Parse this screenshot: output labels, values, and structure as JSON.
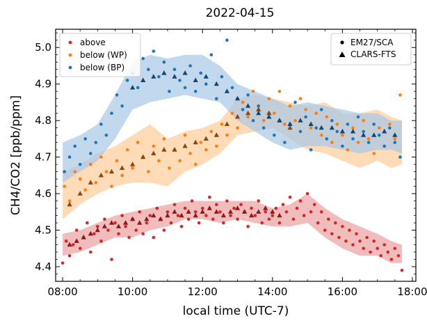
{
  "chart_data": {
    "type": "scatter",
    "title": "2022-04-15",
    "xlabel": "local time (UTC-7)",
    "ylabel": "CH4/CO2 [ppb/ppm]",
    "xlim": [
      7.8,
      18.1
    ],
    "ylim": [
      4.36,
      5.05
    ],
    "x_ticks": [
      {
        "value": 8,
        "label": "08:00"
      },
      {
        "value": 10,
        "label": "10:00"
      },
      {
        "value": 12,
        "label": "12:00"
      },
      {
        "value": 14,
        "label": "14:00"
      },
      {
        "value": 16,
        "label": "16:00"
      },
      {
        "value": 18,
        "label": "18:00"
      }
    ],
    "y_ticks": [
      {
        "value": 4.4,
        "label": "4.4"
      },
      {
        "value": 4.5,
        "label": "4.5"
      },
      {
        "value": 4.6,
        "label": "4.6"
      },
      {
        "value": 4.7,
        "label": "4.7"
      },
      {
        "value": 4.8,
        "label": "4.8"
      },
      {
        "value": 4.9,
        "label": "4.9"
      },
      {
        "value": 5.0,
        "label": "5.0"
      }
    ],
    "legend_series": [
      {
        "label": "above",
        "color": "#d62728"
      },
      {
        "label": "below (WP)",
        "color": "#ff7f0e"
      },
      {
        "label": "below (BP)",
        "color": "#1f77b4"
      }
    ],
    "legend_instruments": [
      {
        "label": "EM27/SCA",
        "marker": "circle"
      },
      {
        "label": "CLARS-FTS",
        "marker": "triangle"
      }
    ],
    "series": [
      {
        "key": "above",
        "color": "#d62728",
        "marker_dark": "#8b1a1a",
        "band_color": "#e9a0a0",
        "band": {
          "x": [
            8.0,
            8.5,
            9.0,
            9.5,
            10.0,
            10.5,
            11.0,
            11.5,
            12.0,
            12.5,
            13.0,
            13.5,
            14.0,
            14.5,
            15.0,
            15.5,
            16.0,
            16.5,
            17.0,
            17.4,
            17.7
          ],
          "lo": [
            4.43,
            4.44,
            4.46,
            4.48,
            4.48,
            4.5,
            4.51,
            4.53,
            4.53,
            4.52,
            4.53,
            4.52,
            4.51,
            4.51,
            4.52,
            4.48,
            4.45,
            4.43,
            4.43,
            4.41,
            4.41
          ],
          "hi": [
            4.49,
            4.5,
            4.52,
            4.54,
            4.55,
            4.56,
            4.57,
            4.58,
            4.58,
            4.58,
            4.58,
            4.58,
            4.56,
            4.57,
            4.6,
            4.56,
            4.53,
            4.51,
            4.49,
            4.47,
            4.46
          ]
        },
        "em27": {
          "x": [
            8.0,
            8.1,
            8.2,
            8.3,
            8.4,
            8.5,
            8.6,
            8.7,
            8.8,
            8.9,
            9.0,
            9.1,
            9.2,
            9.3,
            9.4,
            9.5,
            9.6,
            9.7,
            9.8,
            9.9,
            10.0,
            10.1,
            10.2,
            10.3,
            10.4,
            10.5,
            10.6,
            10.7,
            10.8,
            10.9,
            11.0,
            11.1,
            11.2,
            11.3,
            11.4,
            11.5,
            11.6,
            11.7,
            11.8,
            11.9,
            12.0,
            12.1,
            12.2,
            12.3,
            12.4,
            12.5,
            12.6,
            12.7,
            12.8,
            12.9,
            13.0,
            13.1,
            13.2,
            13.3,
            13.4,
            13.5,
            13.6,
            13.7,
            13.8,
            13.9,
            14.0,
            14.1,
            14.2,
            14.3,
            14.4,
            14.5,
            14.6,
            14.7,
            14.8,
            14.9,
            15.0,
            15.1,
            15.2,
            15.3,
            15.4,
            15.5,
            15.6,
            15.7,
            15.8,
            15.9,
            16.0,
            16.1,
            16.2,
            16.3,
            16.4,
            16.5,
            16.6,
            16.7,
            16.8,
            16.9,
            17.0,
            17.1,
            17.2,
            17.3,
            17.4,
            17.5,
            17.6,
            17.7
          ],
          "y": [
            4.41,
            4.47,
            4.43,
            4.46,
            4.5,
            4.45,
            4.48,
            4.52,
            4.44,
            4.49,
            4.51,
            4.47,
            4.53,
            4.5,
            4.42,
            4.52,
            4.49,
            4.54,
            4.51,
            4.48,
            4.53,
            4.5,
            4.55,
            4.49,
            4.52,
            4.54,
            4.48,
            4.56,
            4.53,
            4.5,
            4.55,
            4.52,
            4.57,
            4.54,
            4.51,
            4.56,
            4.53,
            4.58,
            4.55,
            4.52,
            4.56,
            4.54,
            4.59,
            4.53,
            4.57,
            4.55,
            4.52,
            4.58,
            4.54,
            4.56,
            4.53,
            4.57,
            4.55,
            4.51,
            4.56,
            4.54,
            4.58,
            4.52,
            4.55,
            4.53,
            4.54,
            4.56,
            4.52,
            4.57,
            4.55,
            4.59,
            4.53,
            4.56,
            4.58,
            4.54,
            4.6,
            4.55,
            4.57,
            4.52,
            4.55,
            4.5,
            4.53,
            4.49,
            4.52,
            4.48,
            4.51,
            4.47,
            4.5,
            4.46,
            4.49,
            4.47,
            4.45,
            4.48,
            4.44,
            4.47,
            4.45,
            4.43,
            4.46,
            4.44,
            4.42,
            4.45,
            4.43,
            4.39
          ]
        },
        "clars": {
          "x": [
            8.2,
            8.4,
            8.6,
            8.8,
            9.0,
            9.2,
            9.4,
            9.6,
            9.8,
            10.0,
            10.2,
            10.4,
            10.6,
            10.8,
            11.0,
            11.2,
            11.4,
            11.6,
            11.8,
            12.0,
            12.2,
            12.4,
            12.6,
            12.8,
            13.0,
            13.2,
            13.4,
            13.6,
            13.8,
            14.0,
            14.2
          ],
          "y": [
            4.46,
            4.47,
            4.48,
            4.49,
            4.5,
            4.51,
            4.52,
            4.51,
            4.52,
            4.53,
            4.52,
            4.53,
            4.54,
            4.53,
            4.54,
            4.55,
            4.54,
            4.55,
            4.54,
            4.55,
            4.56,
            4.55,
            4.54,
            4.55,
            4.56,
            4.55,
            4.54,
            4.55,
            4.56,
            4.55,
            4.54
          ]
        }
      },
      {
        "key": "below (WP)",
        "color": "#ff7f0e",
        "marker_dark": "#8b4513",
        "band_color": "#ffcc99",
        "band": {
          "x": [
            8.0,
            8.5,
            9.0,
            9.5,
            10.0,
            10.5,
            11.0,
            11.5,
            12.0,
            12.5,
            13.0,
            13.5,
            14.0,
            14.5,
            15.0,
            15.5,
            16.0,
            16.5,
            17.0,
            17.4,
            17.7
          ],
          "lo": [
            4.53,
            4.57,
            4.6,
            4.62,
            4.63,
            4.63,
            4.62,
            4.66,
            4.68,
            4.71,
            4.76,
            4.77,
            4.78,
            4.75,
            4.72,
            4.71,
            4.69,
            4.67,
            4.69,
            4.67,
            4.68
          ],
          "hi": [
            4.66,
            4.68,
            4.71,
            4.73,
            4.76,
            4.79,
            4.75,
            4.77,
            4.78,
            4.8,
            4.86,
            4.87,
            4.86,
            4.85,
            4.84,
            4.85,
            4.82,
            4.82,
            4.83,
            4.81,
            4.8
          ]
        },
        "em27": {
          "x": [
            8.05,
            8.2,
            8.35,
            8.5,
            8.65,
            8.8,
            8.95,
            9.1,
            9.25,
            9.4,
            9.55,
            9.7,
            9.85,
            10.0,
            10.15,
            10.3,
            10.45,
            10.6,
            10.75,
            10.9,
            11.05,
            11.2,
            11.35,
            11.5,
            11.65,
            11.8,
            11.95,
            12.1,
            12.25,
            12.4,
            12.55,
            12.7,
            12.85,
            13.0,
            13.15,
            13.3,
            13.45,
            13.6,
            13.75,
            13.9,
            14.05,
            14.2,
            14.35,
            14.5,
            14.65,
            14.8,
            14.95,
            15.1,
            15.25,
            15.4,
            15.55,
            15.7,
            15.85,
            16.0,
            16.15,
            16.3,
            16.45,
            16.6,
            16.75,
            16.9,
            17.05,
            17.2,
            17.35,
            17.5,
            17.65
          ],
          "y": [
            4.62,
            4.58,
            4.66,
            4.64,
            4.61,
            4.68,
            4.63,
            4.7,
            4.66,
            4.62,
            4.69,
            4.65,
            4.72,
            4.67,
            4.74,
            4.7,
            4.66,
            4.73,
            4.69,
            4.75,
            4.67,
            4.72,
            4.69,
            4.76,
            4.71,
            4.68,
            4.74,
            4.72,
            4.77,
            4.73,
            4.79,
            4.76,
            4.82,
            4.78,
            4.85,
            4.81,
            4.88,
            4.83,
            4.8,
            4.86,
            4.82,
            4.88,
            4.79,
            4.84,
            4.8,
            4.86,
            4.83,
            4.78,
            4.82,
            4.76,
            4.81,
            4.74,
            4.79,
            4.76,
            4.72,
            4.78,
            4.74,
            4.8,
            4.75,
            4.71,
            4.78,
            4.73,
            4.79,
            4.75,
            4.87
          ]
        },
        "clars": {
          "x": [
            8.2,
            8.5,
            8.8,
            9.1,
            9.4,
            9.7,
            10.0,
            10.3,
            10.6,
            10.9,
            11.2,
            11.5,
            11.8,
            12.1,
            12.4,
            12.7,
            13.0,
            13.3,
            13.6,
            13.9,
            14.2,
            14.5
          ],
          "y": [
            4.57,
            4.6,
            4.63,
            4.65,
            4.66,
            4.67,
            4.68,
            4.7,
            4.71,
            4.72,
            4.72,
            4.73,
            4.74,
            4.75,
            4.76,
            4.79,
            4.81,
            4.82,
            4.83,
            4.82,
            4.8,
            4.78
          ]
        }
      },
      {
        "key": "below (BP)",
        "color": "#1f77b4",
        "marker_dark": "#16466e",
        "band_color": "#a6c8e6",
        "band": {
          "x": [
            8.0,
            8.5,
            9.0,
            9.5,
            10.0,
            10.5,
            11.0,
            11.5,
            12.0,
            12.5,
            13.0,
            13.5,
            14.0,
            14.5,
            15.0,
            15.5,
            16.0,
            16.5,
            17.0,
            17.4,
            17.7
          ],
          "lo": [
            4.63,
            4.66,
            4.69,
            4.75,
            4.83,
            4.85,
            4.86,
            4.87,
            4.86,
            4.85,
            4.8,
            4.77,
            4.74,
            4.72,
            4.73,
            4.73,
            4.72,
            4.71,
            4.72,
            4.72,
            4.71
          ],
          "hi": [
            4.74,
            4.76,
            4.79,
            4.87,
            4.96,
            4.98,
            4.97,
            4.98,
            4.98,
            4.95,
            4.9,
            4.88,
            4.86,
            4.84,
            4.85,
            4.84,
            4.83,
            4.82,
            4.82,
            4.8,
            4.8
          ]
        },
        "em27": {
          "x": [
            8.05,
            8.2,
            8.35,
            8.5,
            8.65,
            8.8,
            8.95,
            9.1,
            9.25,
            9.4,
            9.55,
            9.7,
            9.85,
            10.0,
            10.15,
            10.3,
            10.45,
            10.6,
            10.75,
            10.9,
            11.05,
            11.2,
            11.35,
            11.5,
            11.65,
            11.8,
            11.95,
            12.1,
            12.25,
            12.4,
            12.55,
            12.7,
            12.85,
            13.0,
            13.15,
            13.3,
            13.45,
            13.6,
            13.75,
            13.9,
            14.05,
            14.2,
            14.35,
            14.5,
            14.65,
            14.8,
            14.95,
            15.1,
            15.25,
            15.4,
            15.55,
            15.7,
            15.85,
            16.0,
            16.15,
            16.3,
            16.45,
            16.6,
            16.75,
            16.9,
            17.05,
            17.2,
            17.35,
            17.5,
            17.65
          ],
          "y": [
            4.66,
            4.7,
            4.73,
            4.68,
            4.75,
            4.71,
            4.74,
            4.79,
            4.76,
            4.82,
            4.87,
            4.84,
            4.91,
            4.93,
            4.89,
            4.97,
            4.94,
            4.99,
            4.92,
            4.96,
            4.88,
            4.94,
            4.91,
            4.89,
            4.95,
            4.88,
            4.93,
            4.9,
            4.98,
            4.86,
            4.92,
            5.02,
            4.89,
            4.86,
            4.83,
            4.87,
            4.8,
            4.84,
            4.78,
            4.82,
            4.76,
            4.8,
            4.74,
            4.79,
            4.85,
            4.77,
            4.81,
            4.72,
            4.78,
            4.83,
            4.75,
            4.8,
            4.77,
            4.73,
            4.79,
            4.75,
            4.81,
            4.77,
            4.74,
            4.79,
            4.76,
            4.73,
            4.78,
            4.74,
            4.7
          ]
        },
        "clars": {
          "x": [
            10.0,
            10.3,
            10.6,
            10.9,
            11.2,
            11.5,
            11.8,
            12.1,
            12.4,
            12.7,
            13.0,
            13.3,
            13.6,
            13.9,
            14.2,
            14.5,
            14.8,
            15.1,
            15.4,
            15.7,
            16.0,
            16.3,
            16.6,
            16.9,
            17.2,
            17.5
          ],
          "y": [
            4.89,
            4.91,
            4.92,
            4.93,
            4.92,
            4.93,
            4.91,
            4.92,
            4.9,
            4.88,
            4.86,
            4.84,
            4.82,
            4.81,
            4.8,
            4.79,
            4.8,
            4.79,
            4.78,
            4.78,
            4.77,
            4.77,
            4.76,
            4.76,
            4.77,
            4.76
          ]
        }
      }
    ]
  }
}
